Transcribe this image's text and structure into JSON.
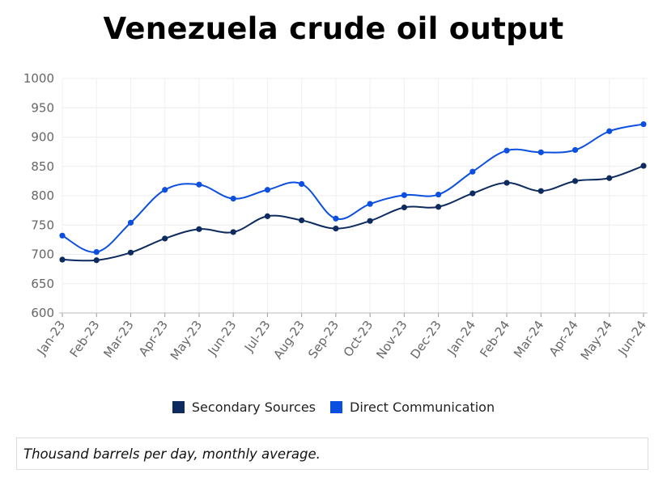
{
  "chart_data": {
    "type": "line",
    "title": "Venezuela crude oil output",
    "categories": [
      "Jan-23",
      "Feb-23",
      "Mar-23",
      "Apr-23",
      "May-23",
      "Jun-23",
      "Jul-23",
      "Aug-23",
      "Sep-23",
      "Oct-23",
      "Nov-23",
      "Dec-23",
      "Jan-24",
      "Feb-24",
      "Mar-24",
      "Apr-24",
      "May-24",
      "Jun-24"
    ],
    "ylim": [
      600,
      1000
    ],
    "yticks": [
      "600",
      "650",
      "700",
      "750",
      "800",
      "850",
      "900",
      "950",
      "1000"
    ],
    "grid": true,
    "series": [
      {
        "name": "Secondary Sources",
        "color": "#0d2b5e",
        "values": [
          691,
          690,
          703,
          727,
          743,
          738,
          765,
          758,
          744,
          757,
          780,
          781,
          804,
          822,
          808,
          825,
          830,
          851
        ]
      },
      {
        "name": "Direct Communication",
        "color": "#0a4fe0",
        "values": [
          732,
          704,
          754,
          810,
          819,
          795,
          810,
          820,
          761,
          786,
          801,
          802,
          841,
          877,
          874,
          878,
          910,
          922
        ]
      }
    ],
    "legend_position": "bottom"
  },
  "note": "Thousand barrels per day, monthly average."
}
